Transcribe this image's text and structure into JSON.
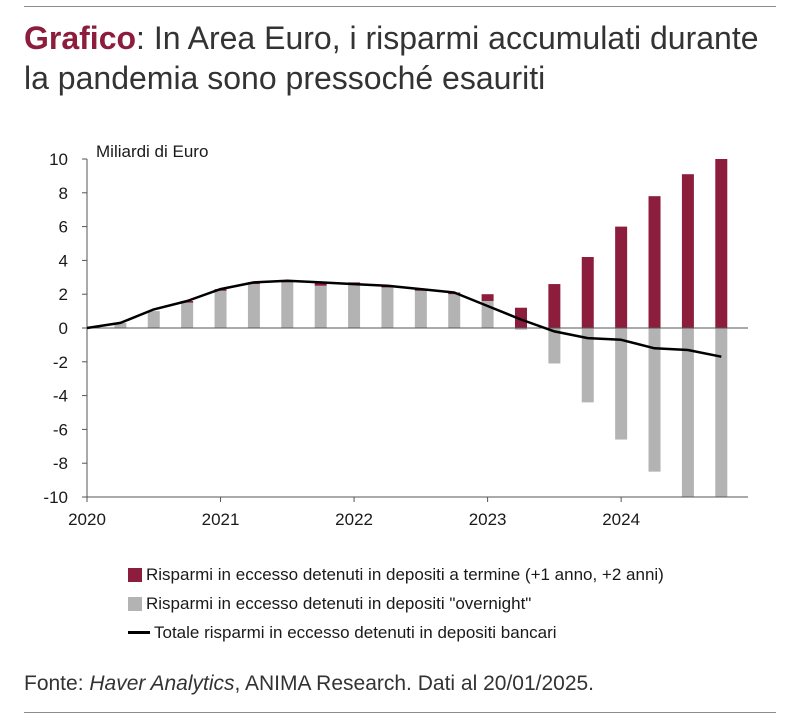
{
  "title": {
    "prefix": "Grafico",
    "colon": ":",
    "text": " In Area Euro, i risparmi accumulati durante la pandemia sono pressoché esauriti"
  },
  "colors": {
    "accent": "#8c1d3c",
    "term_deposits": "#8c1d3c",
    "overnight_deposits": "#b3b3b3",
    "total_line": "#000000"
  },
  "chart_data": {
    "type": "bar",
    "ylabel": "Miliardi di Euro",
    "ylim": [
      -10,
      10
    ],
    "yticks": [
      10,
      8,
      6,
      4,
      2,
      0,
      -2,
      -4,
      -6,
      -8,
      -10
    ],
    "xticks": [
      "2020",
      "2021",
      "2022",
      "2023",
      "2024"
    ],
    "xlim": [
      2020,
      2024.95
    ],
    "grid": false,
    "legend_position": "bottom",
    "x": [
      2020.25,
      2020.5,
      2020.75,
      2021.0,
      2021.25,
      2021.5,
      2021.75,
      2022.0,
      2022.25,
      2022.5,
      2022.75,
      2023.0,
      2023.25,
      2023.5,
      2023.75,
      2024.0,
      2024.25,
      2024.5,
      2024.75
    ],
    "series": [
      {
        "name": "Risparmi in eccesso detenuti in depositi a termine (+1 anno, +2 anni)",
        "kind": "bar",
        "values": [
          0,
          0,
          0.1,
          0.1,
          0.1,
          0.1,
          0.2,
          0.1,
          0.1,
          0.1,
          0.1,
          0.4,
          1.2,
          2.6,
          4.2,
          6.0,
          7.8,
          9.1,
          10
        ]
      },
      {
        "name": "Risparmi in eccesso detenuti in depositi \"overnight\"",
        "kind": "bar",
        "values": [
          0.3,
          1.0,
          1.5,
          2.2,
          2.6,
          2.7,
          2.5,
          2.6,
          2.4,
          2.2,
          2.0,
          1.6,
          -0.1,
          -2.1,
          -4.4,
          -6.6,
          -8.5,
          -10,
          -10
        ]
      },
      {
        "name": "Totale risparmi in eccesso detenuti in depositi bancari",
        "kind": "line",
        "values": [
          0.3,
          1.1,
          1.6,
          2.3,
          2.7,
          2.8,
          2.7,
          2.6,
          2.5,
          2.3,
          2.1,
          1.3,
          0.5,
          -0.2,
          -0.6,
          -0.7,
          -1.2,
          -1.3,
          -1.7
        ]
      }
    ],
    "line_points": [
      [
        2020.0,
        0.0
      ],
      [
        2020.25,
        0.3
      ],
      [
        2020.5,
        1.1
      ],
      [
        2020.75,
        1.6
      ],
      [
        2021.0,
        2.3
      ],
      [
        2021.25,
        2.7
      ],
      [
        2021.5,
        2.8
      ],
      [
        2021.75,
        2.7
      ],
      [
        2022.0,
        2.6
      ],
      [
        2022.25,
        2.5
      ],
      [
        2022.5,
        2.3
      ],
      [
        2022.75,
        2.1
      ],
      [
        2023.0,
        1.3
      ],
      [
        2023.25,
        0.5
      ],
      [
        2023.5,
        -0.2
      ],
      [
        2023.75,
        -0.6
      ],
      [
        2024.0,
        -0.7
      ],
      [
        2024.25,
        -1.2
      ],
      [
        2024.5,
        -1.3
      ],
      [
        2024.75,
        -1.7
      ]
    ]
  },
  "source": {
    "prefix": "Fonte: ",
    "italic": "Haver Analytics",
    "rest": ", ANIMA Research. Dati al 20/01/2025."
  }
}
